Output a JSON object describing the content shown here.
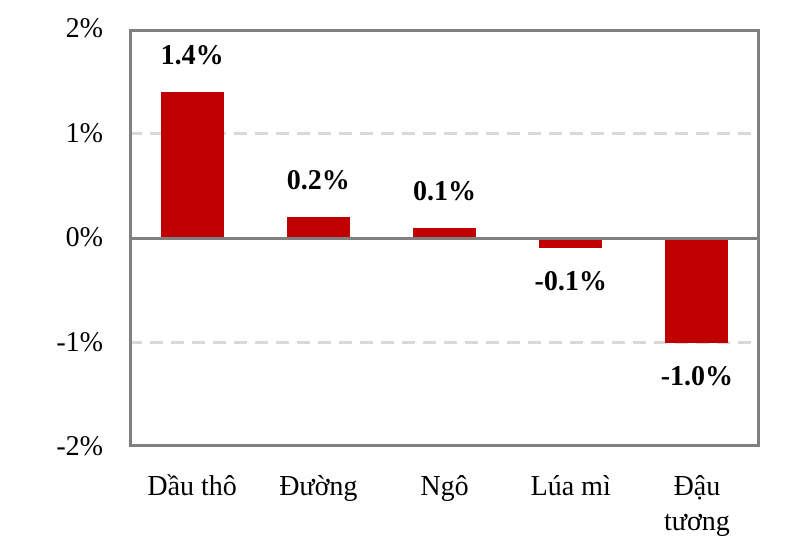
{
  "chart_data": {
    "type": "bar",
    "categories": [
      "Dầu thô",
      "Đường",
      "Ngô",
      "Lúa mì",
      "Đậu tương"
    ],
    "values": [
      1.4,
      0.2,
      0.1,
      -0.1,
      -1.0
    ],
    "data_labels": [
      "1.4%",
      "0.2%",
      "0.1%",
      "-0.1%",
      "-1.0%"
    ],
    "y_tick_values": [
      2,
      1,
      0,
      -1,
      -2
    ],
    "y_tick_labels": [
      "2%",
      "1%",
      "0%",
      "-1%",
      "-2%"
    ],
    "ylim": [
      -2,
      2
    ],
    "gridline_values": [
      1,
      -1
    ],
    "grid": "horizontal dashed at 1% and -1%",
    "legend": "none",
    "colors": {
      "bar": "#C00000",
      "axis": "#808080",
      "gridline": "#D9D9D9",
      "text": "#000000",
      "background": "#FFFFFF"
    }
  }
}
